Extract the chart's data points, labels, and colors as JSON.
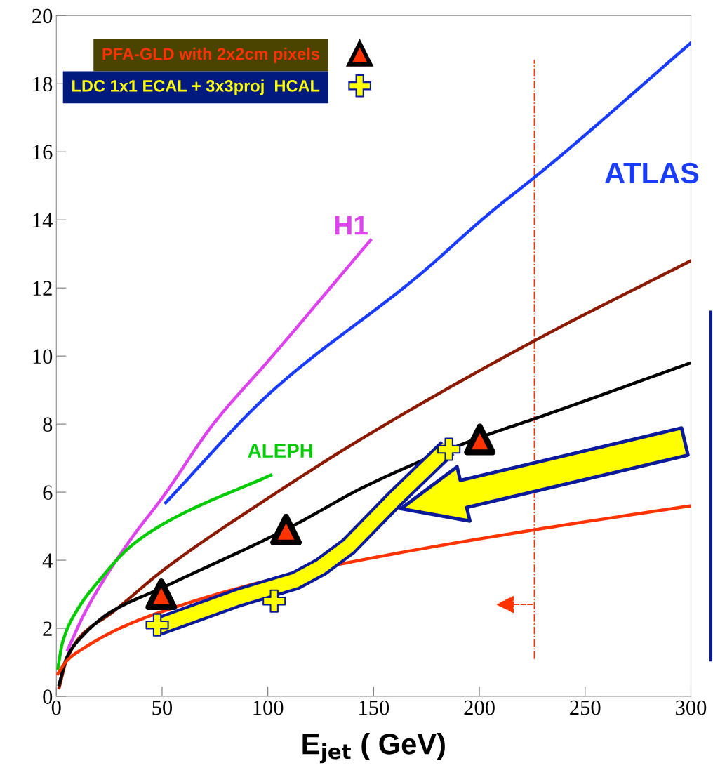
{
  "chart_data": {
    "type": "line",
    "xlabel": "E$_{jet}$ ( GeV)",
    "xlim": [
      0,
      300
    ],
    "xticks": [
      0,
      50,
      100,
      150,
      200,
      250,
      300
    ],
    "ylim": [
      0,
      20
    ],
    "yticks": [
      0,
      2,
      4,
      6,
      8,
      10,
      12,
      14,
      16,
      18,
      20
    ],
    "grid": false,
    "legend": "top left",
    "marker": "none",
    "line_style": "solid",
    "series": [
      {
        "name": "H1",
        "color": "#dd44ee",
        "x": [
          5.3,
          13,
          21.2,
          35,
          50.4,
          74.2,
          100.8,
          148.5
        ],
        "values": [
          1.36,
          2.4,
          3.3,
          4.6,
          5.86,
          8.0,
          9.9,
          13.4
        ]
      },
      {
        "name": "ATLAS",
        "color": "#1a3cff",
        "x": [
          51.7,
          100.8,
          172,
          203,
          233,
          300
        ],
        "values": [
          5.69,
          8.9,
          12.4,
          14.1,
          15.6,
          19.2
        ]
      },
      {
        "name": "ALEPH",
        "color": "#00cc00",
        "x": [
          0.7,
          3,
          10,
          21,
          35,
          53,
          101.4
        ],
        "values": [
          0.82,
          1.6,
          2.55,
          3.46,
          4.4,
          5.15,
          6.5
        ]
      },
      {
        "color": "#8b1a00",
        "x": [
          1.3,
          5,
          12,
          26.5,
          50.4,
          103,
          147,
          226.7,
          300
        ],
        "values": [
          0.25,
          1.1,
          1.8,
          2.47,
          3.7,
          5.94,
          7.67,
          10.47,
          12.8
        ]
      },
      {
        "color": "#000000",
        "x": [
          1.3,
          5,
          12,
          25,
          50.4,
          110,
          147,
          200,
          226.7,
          300
        ],
        "values": [
          0.35,
          1.15,
          1.75,
          2.45,
          3.2,
          4.95,
          6.2,
          7.6,
          8.17,
          9.8
        ]
      },
      {
        "color": "#ff3300",
        "x": [
          0.7,
          5,
          14.6,
          30,
          50.4,
          106,
          147,
          226.7,
          300
        ],
        "values": [
          0.66,
          1.05,
          1.48,
          2.0,
          2.5,
          3.5,
          4.04,
          4.9,
          5.6
        ]
      },
      {
        "color": "#ffff00",
        "x": [
          48.4,
          86,
          113,
          125,
          138,
          160,
          185
        ],
        "values": [
          2.06,
          2.9,
          3.4,
          3.8,
          4.4,
          5.8,
          7.3
        ]
      },
      {
        "name": "PFA-GLD with 2x2cm pixels",
        "type": "scatter",
        "marker": "triangle",
        "color": "#ff3300",
        "x": [
          49.6,
          108.6,
          200.2
        ],
        "values": [
          3.0,
          4.9,
          7.55
        ]
      },
      {
        "name": "LDC 1x1 ECAL + 3x3proj  HCAL",
        "type": "scatter",
        "marker": "cross",
        "color": "#ffff00",
        "x": [
          47.7,
          103,
          185.6
        ],
        "values": [
          2.1,
          2.8,
          7.26
        ]
      }
    ],
    "ref_lines": [
      {
        "axis": "x",
        "value": 226,
        "color": "#ff3300",
        "line_style": "dashdot"
      }
    ]
  }
}
